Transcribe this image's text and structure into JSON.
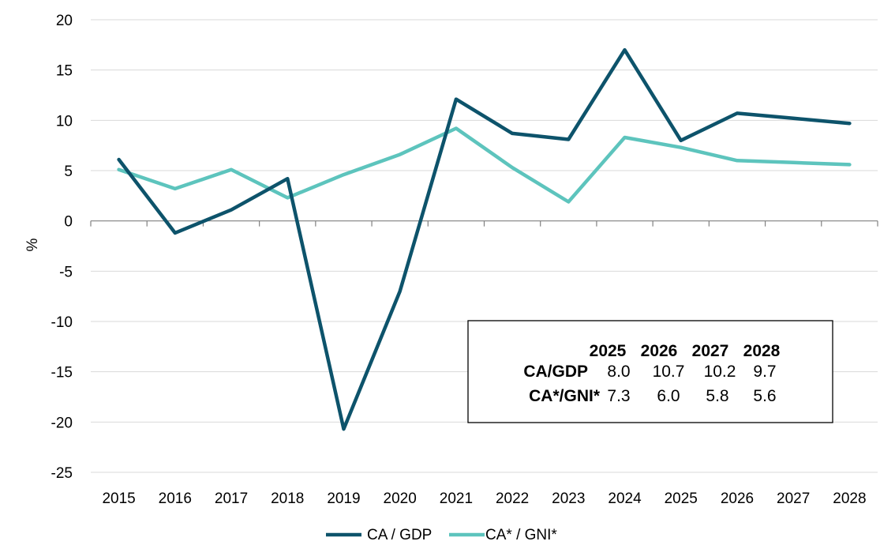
{
  "chart_data": {
    "type": "line",
    "x": [
      "2015",
      "2016",
      "2017",
      "2018",
      "2019",
      "2020",
      "2021",
      "2022",
      "2023",
      "2024",
      "2025",
      "2026",
      "2027",
      "2028"
    ],
    "series": [
      {
        "name": "CA / GDP",
        "color": "#0d536b",
        "values": [
          6.1,
          -1.2,
          1.1,
          4.2,
          -20.7,
          -7.0,
          12.1,
          8.7,
          8.1,
          17.0,
          8.0,
          10.7,
          10.2,
          9.7
        ]
      },
      {
        "name": "CA* / GNI*",
        "color": "#5dc4bd",
        "values": [
          5.1,
          3.2,
          5.1,
          2.3,
          4.6,
          6.6,
          9.2,
          5.3,
          1.9,
          8.3,
          7.3,
          6.0,
          5.8,
          5.6
        ]
      }
    ],
    "ylabel": "%",
    "ylim": [
      -25,
      20
    ],
    "yticks": [
      "20",
      "15",
      "10",
      "5",
      "0",
      "-5",
      "-10",
      "-15",
      "-20",
      "-25"
    ],
    "grid": true,
    "legend": "bottom",
    "table": {
      "headers": [
        "2025",
        "2026",
        "2027",
        "2028"
      ],
      "rows": [
        {
          "label": "CA/GDP",
          "values": [
            "8.0",
            "10.7",
            "10.2",
            "9.7"
          ]
        },
        {
          "label": "CA*/GNI*",
          "values": [
            "7.3",
            "6.0",
            "5.8",
            "5.6"
          ]
        }
      ]
    }
  }
}
